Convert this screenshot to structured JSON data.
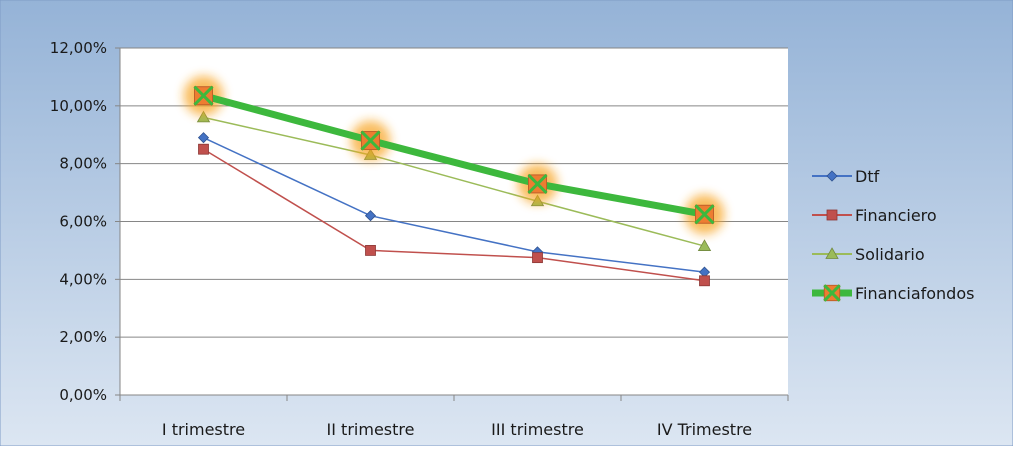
{
  "chart_data": {
    "type": "line",
    "categories": [
      "I trimestre",
      "II trimestre",
      "III trimestre",
      "IV Trimestre"
    ],
    "y_ticks": [
      "0,00%",
      "2,00%",
      "4,00%",
      "6,00%",
      "8,00%",
      "10,00%",
      "12,00%"
    ],
    "ylim": [
      0,
      12
    ],
    "grid": true,
    "legend_position": "right",
    "series": [
      {
        "name": "Dtf",
        "values": [
          8.9,
          6.2,
          4.95,
          4.25
        ],
        "color": "#4472C4",
        "marker": "diamond"
      },
      {
        "name": "Financiero",
        "values": [
          8.5,
          5.0,
          4.75,
          3.95
        ],
        "color": "#C0504D",
        "marker": "square"
      },
      {
        "name": "Solidario",
        "values": [
          9.6,
          8.3,
          6.7,
          5.15
        ],
        "color": "#9BBB59",
        "marker": "triangle"
      },
      {
        "name": "Financiafondos",
        "values": [
          10.35,
          8.8,
          7.3,
          6.25
        ],
        "color": "#3DB83D",
        "marker": "x-square",
        "highlight": true
      }
    ]
  }
}
